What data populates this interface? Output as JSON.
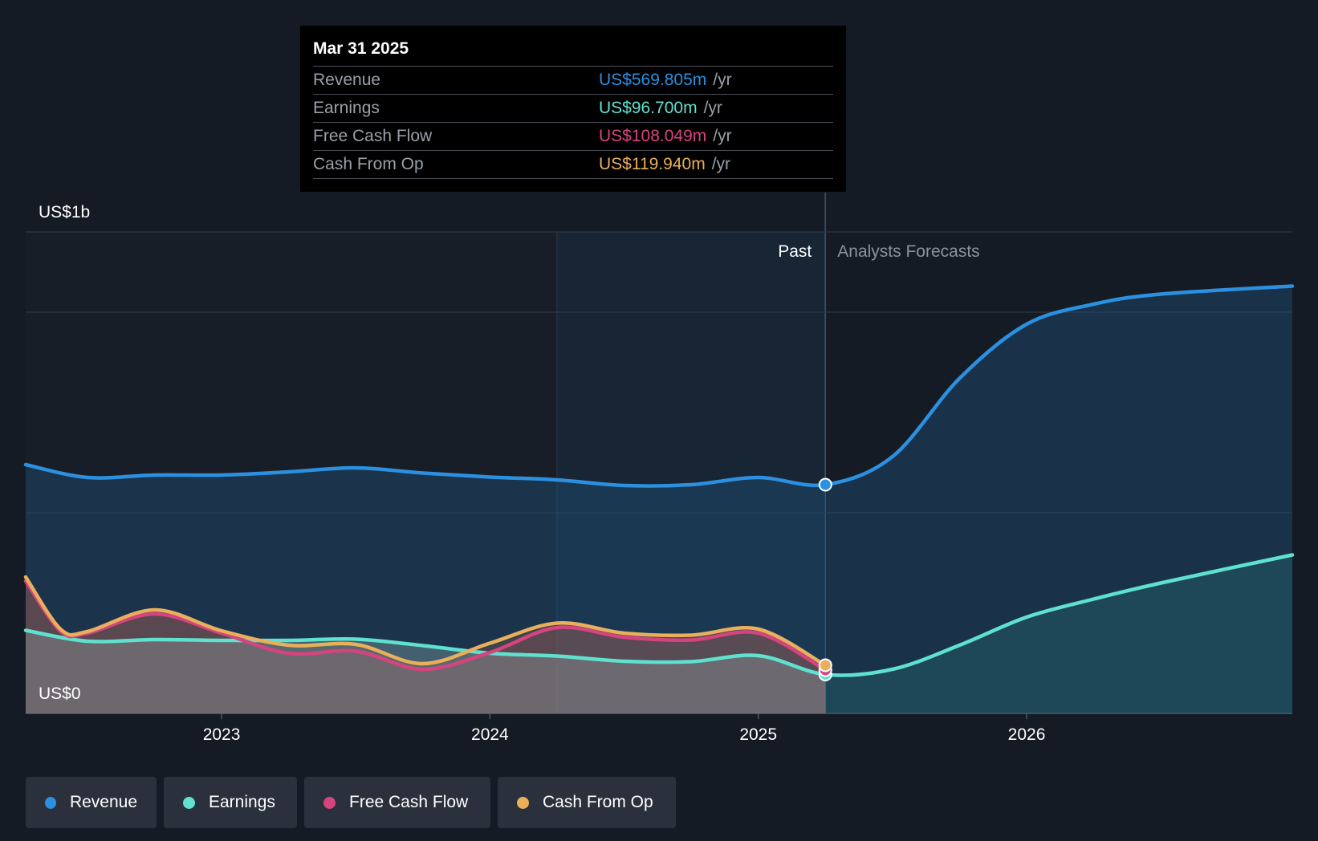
{
  "chart_data": {
    "type": "area",
    "y_axis": {
      "top_label": "US$1b",
      "bottom_label": "US$0",
      "ylim": [
        0,
        1200
      ],
      "gridlines": [
        0,
        500,
        1000,
        1200
      ]
    },
    "x_axis": {
      "range": [
        2022.27,
        2026.99
      ],
      "ticks": [
        {
          "value": 2023,
          "label": "2023"
        },
        {
          "value": 2024,
          "label": "2024"
        },
        {
          "value": 2025,
          "label": "2025"
        },
        {
          "value": 2026,
          "label": "2026"
        }
      ]
    },
    "divider": {
      "x": 2025.25,
      "past_label": "Past",
      "forecast_label": "Analysts Forecasts",
      "highlight_start": 2024.25
    },
    "series": [
      {
        "name": "Revenue",
        "color": "#2b90e0",
        "points": [
          [
            2022.27,
            620
          ],
          [
            2022.5,
            588
          ],
          [
            2022.75,
            594
          ],
          [
            2023.0,
            594
          ],
          [
            2023.25,
            602
          ],
          [
            2023.5,
            612
          ],
          [
            2023.75,
            599
          ],
          [
            2024.0,
            589
          ],
          [
            2024.25,
            582
          ],
          [
            2024.5,
            568
          ],
          [
            2024.75,
            570
          ],
          [
            2025.0,
            588
          ],
          [
            2025.25,
            570
          ],
          [
            2025.5,
            640
          ],
          [
            2025.75,
            835
          ],
          [
            2026.0,
            970
          ],
          [
            2026.25,
            1020
          ],
          [
            2026.5,
            1045
          ],
          [
            2026.99,
            1065
          ]
        ]
      },
      {
        "name": "Earnings",
        "color": "#5fe1cf",
        "points": [
          [
            2022.27,
            207
          ],
          [
            2022.5,
            180
          ],
          [
            2022.75,
            184
          ],
          [
            2023.0,
            182
          ],
          [
            2023.25,
            182
          ],
          [
            2023.5,
            185
          ],
          [
            2023.75,
            169
          ],
          [
            2024.0,
            150
          ],
          [
            2024.25,
            143
          ],
          [
            2024.5,
            130
          ],
          [
            2024.75,
            129
          ],
          [
            2025.0,
            144
          ],
          [
            2025.25,
            97
          ],
          [
            2025.5,
            110
          ],
          [
            2025.75,
            170
          ],
          [
            2026.0,
            240
          ],
          [
            2026.25,
            285
          ],
          [
            2026.5,
            325
          ],
          [
            2026.99,
            395
          ]
        ]
      },
      {
        "name": "Free Cash Flow",
        "color": "#d6447f",
        "points": [
          [
            2022.27,
            330
          ],
          [
            2022.4,
            205
          ],
          [
            2022.5,
            200
          ],
          [
            2022.75,
            248
          ],
          [
            2023.0,
            200
          ],
          [
            2023.25,
            150
          ],
          [
            2023.5,
            155
          ],
          [
            2023.75,
            110
          ],
          [
            2024.0,
            152
          ],
          [
            2024.25,
            214
          ],
          [
            2024.5,
            190
          ],
          [
            2024.75,
            183
          ],
          [
            2025.0,
            200
          ],
          [
            2025.25,
            108
          ]
        ]
      },
      {
        "name": "Cash From Op",
        "color": "#eaaf5b",
        "points": [
          [
            2022.27,
            340
          ],
          [
            2022.4,
            210
          ],
          [
            2022.5,
            204
          ],
          [
            2022.75,
            258
          ],
          [
            2023.0,
            206
          ],
          [
            2023.25,
            170
          ],
          [
            2023.5,
            172
          ],
          [
            2023.75,
            124
          ],
          [
            2024.0,
            175
          ],
          [
            2024.25,
            225
          ],
          [
            2024.5,
            200
          ],
          [
            2024.75,
            195
          ],
          [
            2025.0,
            210
          ],
          [
            2025.25,
            120
          ]
        ]
      }
    ]
  },
  "tooltip": {
    "date": "Mar 31 2025",
    "rows": [
      {
        "label": "Revenue",
        "value": "US$569.805m",
        "unit": "/yr",
        "color": "#2b90e0"
      },
      {
        "label": "Earnings",
        "value": "US$96.700m",
        "unit": "/yr",
        "color": "#5fe1cf"
      },
      {
        "label": "Free Cash Flow",
        "value": "US$108.049m",
        "unit": "/yr",
        "color": "#d6447f"
      },
      {
        "label": "Cash From Op",
        "value": "US$119.940m",
        "unit": "/yr",
        "color": "#eaaf5b"
      }
    ]
  },
  "legend": [
    {
      "label": "Revenue",
      "color": "#2b90e0"
    },
    {
      "label": "Earnings",
      "color": "#5fe1cf"
    },
    {
      "label": "Free Cash Flow",
      "color": "#d6447f"
    },
    {
      "label": "Cash From Op",
      "color": "#eaaf5b"
    }
  ]
}
